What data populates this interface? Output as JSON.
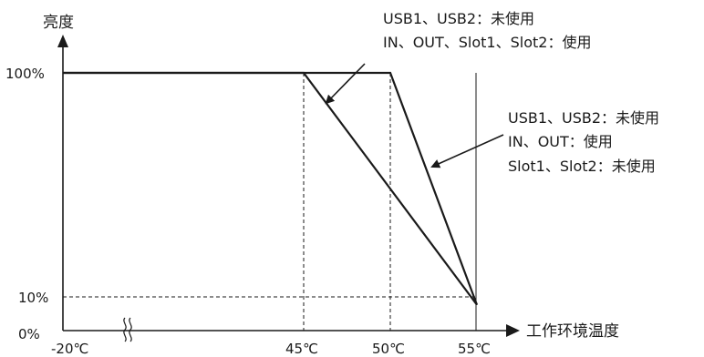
{
  "chart_data": {
    "type": "line",
    "ylabel": "亮度",
    "xlabel": "工作环境温度",
    "x_ticks": [
      "-20℃",
      "45℃",
      "50℃",
      "55℃"
    ],
    "y_ticks": [
      "100%",
      "10%",
      "0%"
    ],
    "xlim": [
      -20,
      55
    ],
    "ylim": [
      0,
      100
    ],
    "x_axis_break": true,
    "gridlines": {
      "vertical_dashed_at_x": [
        45,
        50
      ],
      "horizontal_dashed_at_y": [
        10
      ]
    },
    "series": [
      {
        "points": [
          [
            -20,
            100
          ],
          [
            45,
            100
          ],
          [
            55,
            10
          ]
        ],
        "annotation": [
          "USB1、USB2：未使用",
          "IN、OUT、Slot1、Slot2：使用"
        ]
      },
      {
        "points": [
          [
            -20,
            100
          ],
          [
            50,
            100
          ],
          [
            55,
            10
          ]
        ],
        "annotation": [
          "USB1、USB2：未使用",
          "IN、OUT：使用",
          "Slot1、Slot2：未使用"
        ]
      }
    ]
  }
}
